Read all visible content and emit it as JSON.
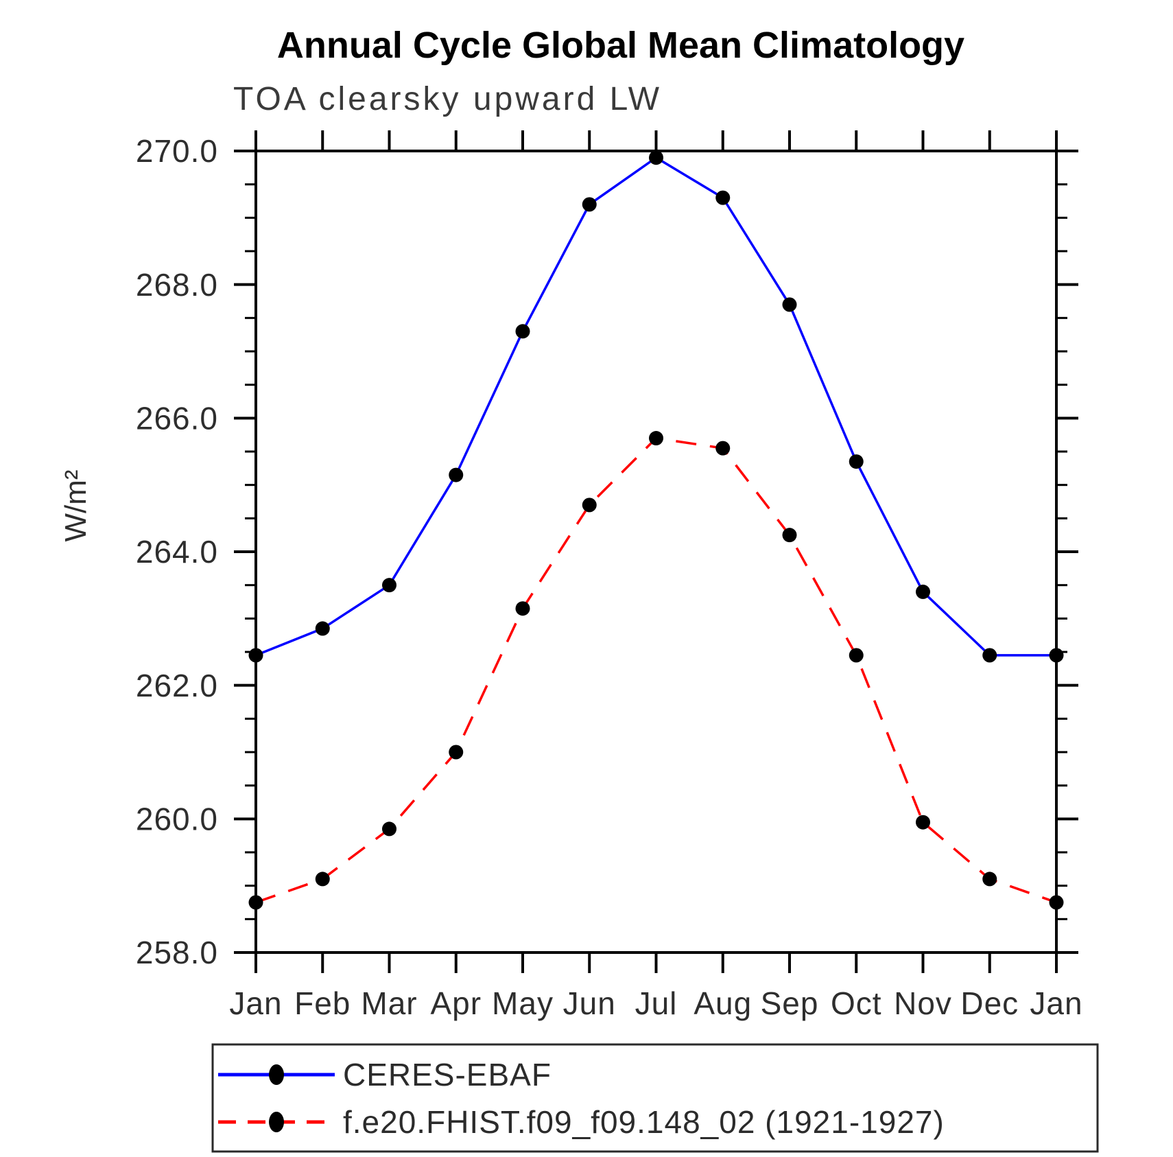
{
  "title": "Annual Cycle Global Mean Climatology",
  "subtitle": "TOA clearsky upward LW",
  "chart_data": {
    "type": "line",
    "title": "Annual Cycle Global Mean Climatology",
    "subtitle": "TOA clearsky upward LW",
    "ylabel": "W/m²",
    "xlabel": "",
    "x_categories": [
      "Jan",
      "Feb",
      "Mar",
      "Apr",
      "May",
      "Jun",
      "Jul",
      "Aug",
      "Sep",
      "Oct",
      "Nov",
      "Dec",
      "Jan"
    ],
    "series": [
      {
        "name": "CERES-EBAF",
        "color": "#0000ff",
        "line_style": "solid",
        "marker": "filled-circle",
        "marker_color": "#000000",
        "values": [
          262.45,
          262.85,
          263.5,
          265.15,
          267.3,
          269.2,
          269.9,
          269.3,
          267.7,
          265.35,
          263.4,
          262.45,
          262.45
        ]
      },
      {
        "name": "f.e20.FHIST.f09_f09.148_02 (1921-1927)",
        "color": "#ff0000",
        "line_style": "dashed",
        "marker": "filled-circle",
        "marker_color": "#000000",
        "values": [
          258.75,
          259.1,
          259.85,
          261.0,
          263.15,
          264.7,
          265.7,
          265.55,
          264.25,
          262.45,
          259.95,
          259.1,
          258.75
        ]
      }
    ],
    "y_axis": {
      "min": 258.0,
      "max": 270.0,
      "major_tick_step": 2.0,
      "minor_tick_step": 0.5,
      "major_tick_values": [
        270.0,
        268.0,
        266.0,
        264.0,
        262.0,
        260.0,
        258.0
      ],
      "major_tick_labels": [
        "270.0",
        "268.0",
        "266.0",
        "264.0",
        "262.0",
        "260.0",
        "258.0"
      ]
    },
    "grid": "off",
    "legend_position": "bottom-left"
  }
}
